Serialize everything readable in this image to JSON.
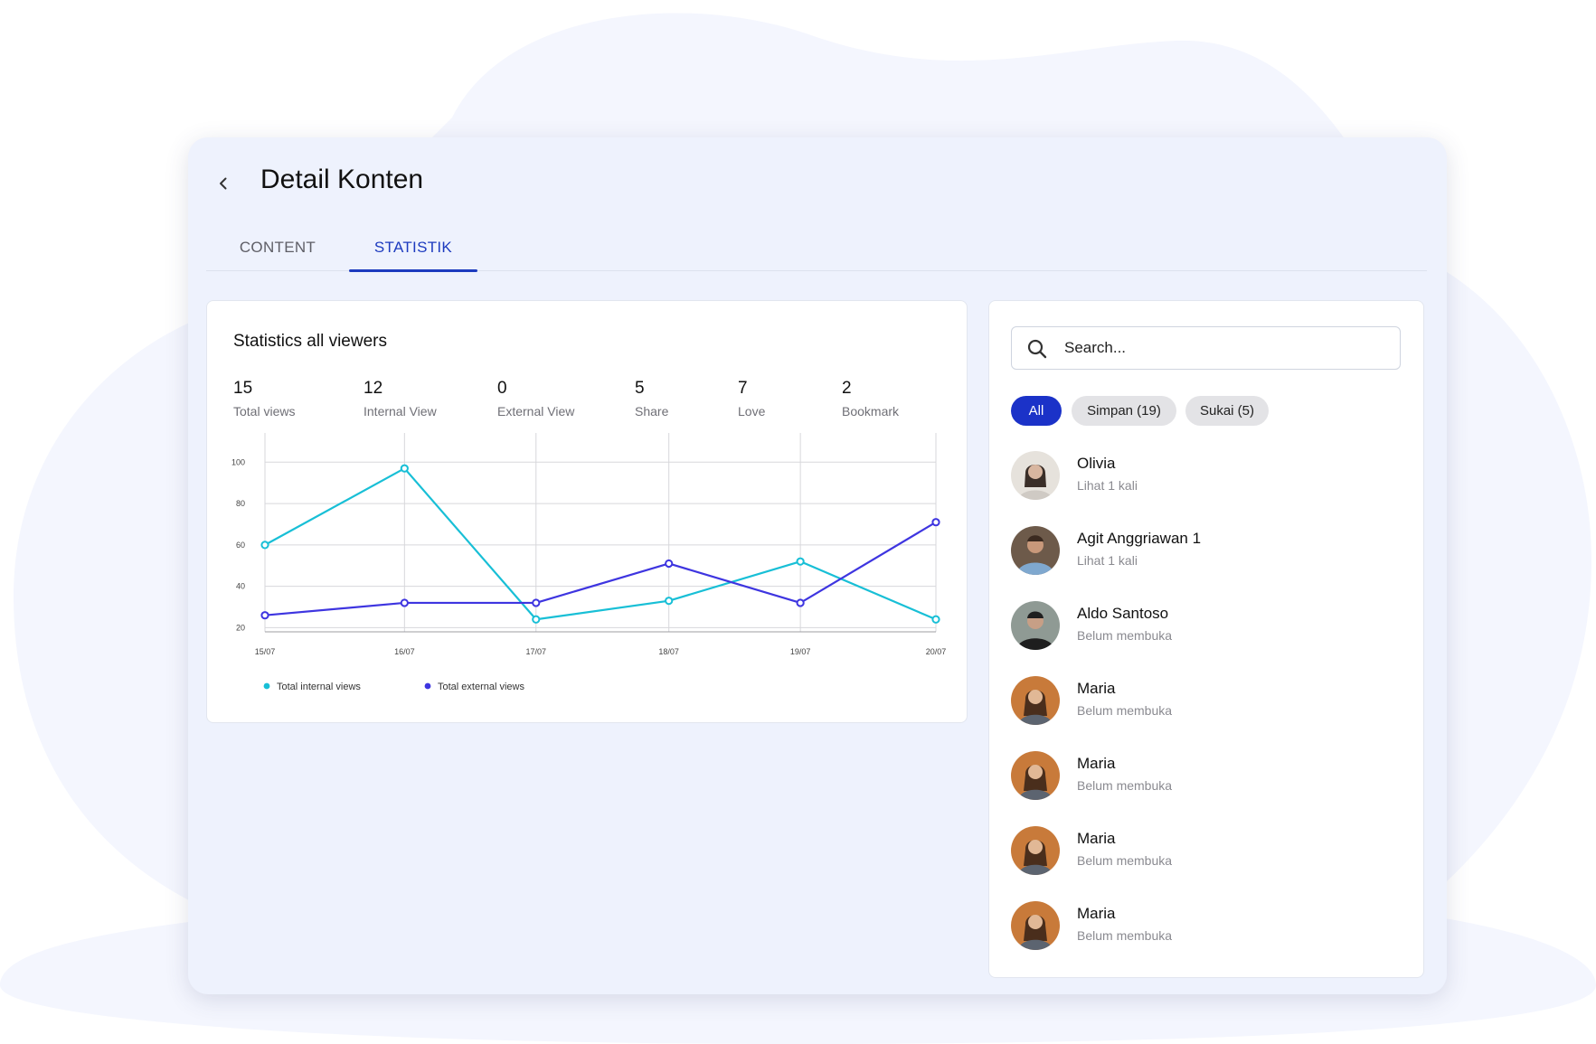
{
  "header": {
    "title": "Detail Konten",
    "back_icon": "chevron-left-icon"
  },
  "tabs": [
    {
      "label": "CONTENT",
      "active": false
    },
    {
      "label": "STATISTIK",
      "active": true
    }
  ],
  "colors": {
    "accent": "#1d3bbf",
    "chip_active": "#1b32c8",
    "series_internal": "#18bfd6",
    "series_external": "#3e35e0",
    "window_bg": "#eef2fd"
  },
  "statistics": {
    "title": "Statistics all viewers",
    "metrics": [
      {
        "value": "15",
        "label": "Total views"
      },
      {
        "value": "12",
        "label": "Internal View"
      },
      {
        "value": "0",
        "label": "External View"
      },
      {
        "value": "5",
        "label": "Share"
      },
      {
        "value": "7",
        "label": "Love"
      },
      {
        "value": "2",
        "label": "Bookmark"
      }
    ]
  },
  "chart_data": {
    "type": "line",
    "categories": [
      "15/07",
      "16/07",
      "17/07",
      "18/07",
      "19/07",
      "20/07"
    ],
    "x": [
      0,
      1.04,
      2.02,
      3.01,
      3.99,
      5.0
    ],
    "series": [
      {
        "name": "Total internal views",
        "color": "#18bfd6",
        "values": [
          60,
          97,
          24,
          33,
          52,
          24
        ]
      },
      {
        "name": "Total external views",
        "color": "#3e35e0",
        "values": [
          26,
          32,
          32,
          51,
          32,
          71
        ]
      }
    ],
    "yticks": [
      20,
      40,
      60,
      80,
      100
    ],
    "ylim": [
      18,
      108
    ],
    "grid": true,
    "legend_position": "bottom-left",
    "title": "",
    "xlabel": "",
    "ylabel": ""
  },
  "search": {
    "placeholder": "Search..."
  },
  "filters": [
    {
      "label": "All",
      "active": true
    },
    {
      "label": "Simpan (19)",
      "active": false
    },
    {
      "label": "Sukai (5)",
      "active": false
    }
  ],
  "viewers": [
    {
      "name": "Olivia",
      "status": "Lihat 1 kali"
    },
    {
      "name": "Agit Anggriawan 1",
      "status": "Lihat 1 kali"
    },
    {
      "name": "Aldo Santoso",
      "status": "Belum membuka"
    },
    {
      "name": "Maria",
      "status": "Belum membuka"
    },
    {
      "name": "Maria",
      "status": "Belum membuka"
    },
    {
      "name": "Maria",
      "status": "Belum membuka"
    },
    {
      "name": "Maria",
      "status": "Belum membuka"
    }
  ]
}
